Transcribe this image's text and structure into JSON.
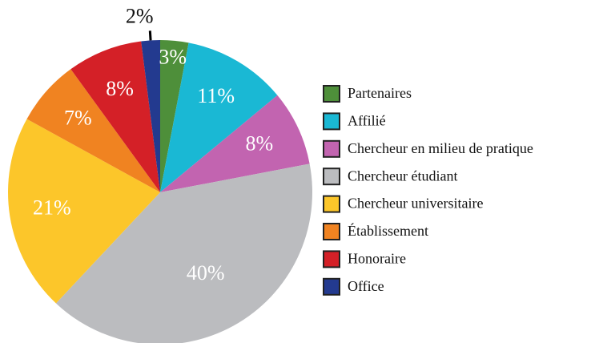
{
  "chart_data": {
    "type": "pie",
    "categories": [
      "Partenaires",
      "Affilié",
      "Chercheur en milieu de pratique",
      "Chercheur étudiant",
      "Chercheur universitaire",
      "Établissement",
      "Honoraire",
      "Office"
    ],
    "values": [
      3,
      11,
      8,
      40,
      21,
      7,
      8,
      2
    ],
    "value_labels": [
      "3%",
      "11%",
      "8%",
      "40%",
      "21%",
      "7%",
      "8%",
      "2%"
    ],
    "colors": [
      "#4e8f3a",
      "#1ab8d4",
      "#c264b0",
      "#bbbcbf",
      "#fcc62a",
      "#f08321",
      "#d42027",
      "#233a8f"
    ],
    "legend": "right"
  }
}
